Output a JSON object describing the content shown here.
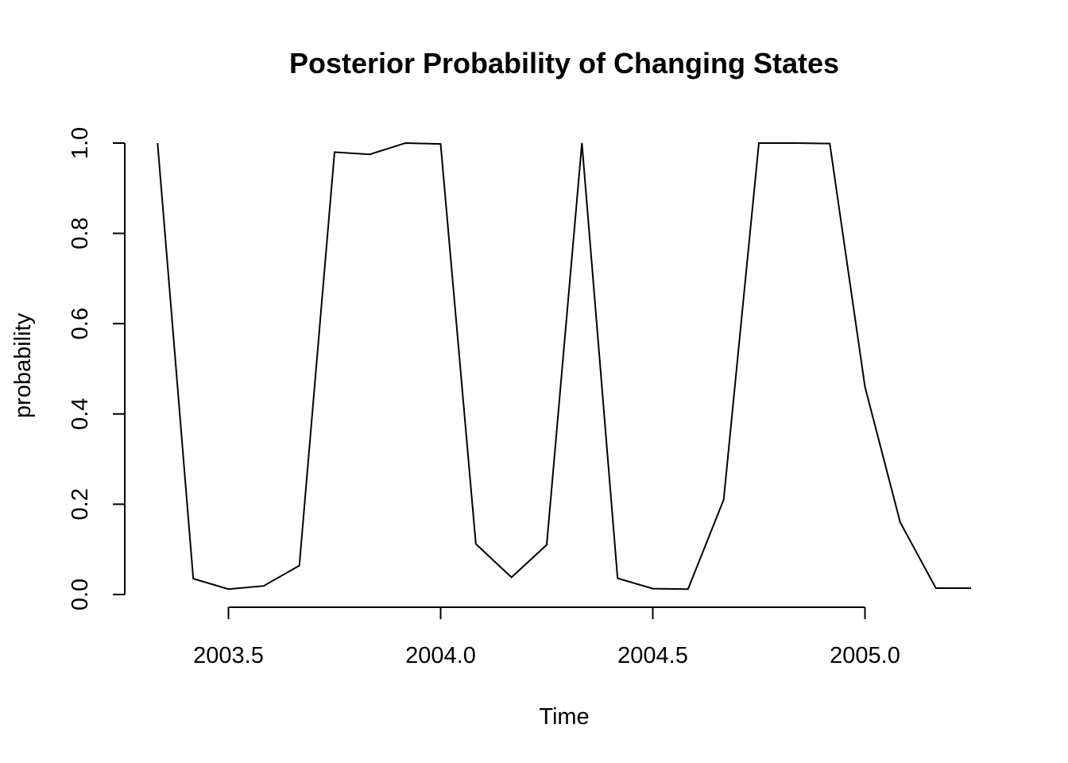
{
  "chart_data": {
    "type": "line",
    "title": "Posterior Probability of Changing States",
    "xlabel": "Time",
    "ylabel": "probability",
    "xlim": [
      2003.25,
      2005.25
    ],
    "ylim": [
      0,
      1
    ],
    "xticks": [
      2003.5,
      2004.0,
      2004.5,
      2005.0
    ],
    "xtick_labels": [
      "2003.5",
      "2004.0",
      "2004.5",
      "2005.0"
    ],
    "yticks": [
      0,
      0.2,
      0.4,
      0.6,
      0.8,
      1.0
    ],
    "ytick_labels": [
      "0.0",
      "0.2",
      "0.4",
      "0.6",
      "0.8",
      "1.0"
    ],
    "grid": false,
    "line_color": "#000000",
    "series": [
      {
        "x": [
          2003.333,
          2003.417,
          2003.5,
          2003.583,
          2003.667,
          2003.75,
          2003.833,
          2003.917,
          2004.0,
          2004.083,
          2004.167,
          2004.25,
          2004.333,
          2004.417,
          2004.5,
          2004.583,
          2004.667,
          2004.75,
          2004.833,
          2004.917,
          2005.0,
          2005.083,
          2005.167,
          2005.25
        ],
        "values": [
          1.0,
          0.035,
          0.012,
          0.019,
          0.064,
          0.98,
          0.975,
          1.0,
          0.998,
          0.112,
          0.038,
          0.11,
          1.0,
          0.036,
          0.013,
          0.012,
          0.21,
          1.0,
          1.0,
          0.999,
          0.46,
          0.16,
          0.014,
          0.014
        ]
      }
    ]
  }
}
